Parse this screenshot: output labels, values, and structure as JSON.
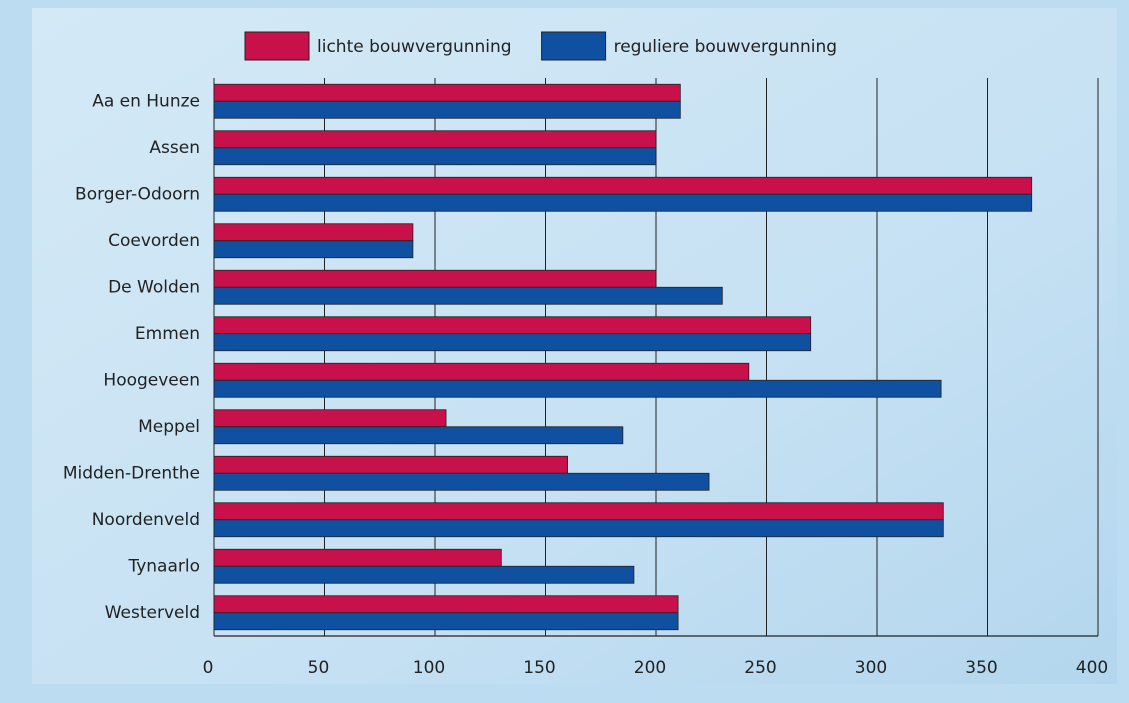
{
  "chart_data": {
    "type": "bar",
    "orientation": "horizontal",
    "categories": [
      "Aa en Hunze",
      "Assen",
      "Borger-Odoorn",
      "Coevorden",
      "De Wolden",
      "Emmen",
      "Hoogeveen",
      "Meppel",
      "Midden-Drenthe",
      "Noordenveld",
      "Tynaarlo",
      "Westerveld"
    ],
    "series": [
      {
        "name": "lichte bouwvergunning",
        "color": "#c8104a",
        "values": [
          211,
          200,
          370,
          90,
          200,
          270,
          242,
          105,
          160,
          330,
          130,
          210
        ]
      },
      {
        "name": "reguliere bouwvergunning",
        "color": "#1050a0",
        "values": [
          211,
          200,
          370,
          90,
          230,
          270,
          329,
          185,
          224,
          330,
          190,
          210
        ]
      }
    ],
    "xlim": [
      0,
      400
    ],
    "xticks": [
      0,
      50,
      100,
      150,
      200,
      250,
      300,
      350,
      400
    ],
    "grid": true,
    "legend": "top"
  }
}
